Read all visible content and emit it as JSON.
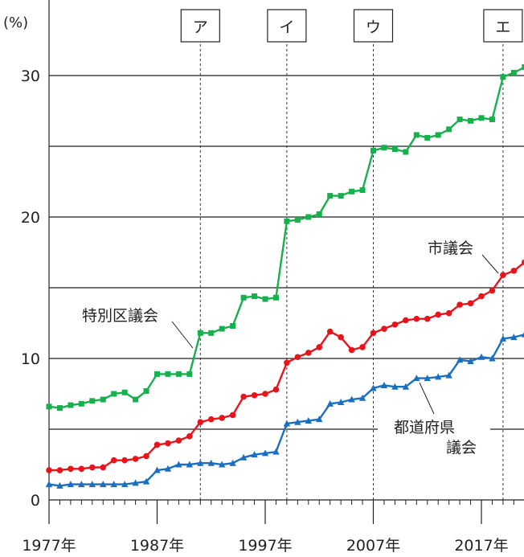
{
  "chart_data": {
    "type": "line",
    "ylabel": "(%)",
    "ylim": [
      0,
      30
    ],
    "ytick_labels": [
      "0",
      "10",
      "20",
      "30"
    ],
    "xtick_labels": [
      "1977年",
      "1987年",
      "1997年",
      "2007年",
      "2017年"
    ],
    "grid": "horizontal lines every 5%",
    "markers": [
      {
        "label": "ア",
        "year": 1991
      },
      {
        "label": "イ",
        "year": 1999
      },
      {
        "label": "ウ",
        "year": 2007
      },
      {
        "label": "エ",
        "year": 2019
      }
    ],
    "x": [
      1977,
      1978,
      1979,
      1980,
      1981,
      1982,
      1983,
      1984,
      1985,
      1986,
      1987,
      1988,
      1989,
      1990,
      1991,
      1992,
      1993,
      1994,
      1995,
      1996,
      1997,
      1998,
      1999,
      2000,
      2001,
      2002,
      2003,
      2004,
      2005,
      2006,
      2007,
      2008,
      2009,
      2010,
      2011,
      2012,
      2013,
      2014,
      2015,
      2016,
      2017,
      2018,
      2019,
      2020,
      2021
    ],
    "series": [
      {
        "name": "特別区議会",
        "color": "#16b04c",
        "marker": "square",
        "values": [
          6.6,
          6.5,
          6.7,
          6.8,
          7.0,
          7.1,
          7.5,
          7.6,
          7.1,
          7.7,
          8.9,
          8.9,
          8.9,
          8.9,
          11.8,
          11.8,
          12.1,
          12.3,
          14.3,
          14.4,
          14.2,
          14.3,
          19.7,
          19.8,
          20.0,
          20.2,
          21.5,
          21.5,
          21.8,
          21.9,
          24.7,
          24.9,
          24.8,
          24.6,
          25.8,
          25.6,
          25.8,
          26.2,
          26.9,
          26.8,
          27.0,
          26.9,
          29.9,
          30.2,
          30.6
        ]
      },
      {
        "name": "市議会",
        "color": "#e8141c",
        "marker": "circle",
        "values": [
          2.1,
          2.1,
          2.2,
          2.2,
          2.3,
          2.3,
          2.8,
          2.8,
          2.9,
          3.1,
          3.9,
          4.0,
          4.2,
          4.5,
          5.5,
          5.7,
          5.8,
          6.0,
          7.3,
          7.4,
          7.5,
          7.8,
          9.7,
          10.1,
          10.4,
          10.8,
          11.9,
          11.5,
          10.6,
          10.8,
          11.8,
          12.1,
          12.4,
          12.7,
          12.8,
          12.8,
          13.1,
          13.2,
          13.8,
          13.9,
          14.4,
          14.8,
          15.9,
          16.2,
          16.8
        ]
      },
      {
        "name": "都道府県議会",
        "color": "#1a6fc0",
        "marker": "triangle",
        "values": [
          1.1,
          1.0,
          1.1,
          1.1,
          1.1,
          1.1,
          1.1,
          1.1,
          1.2,
          1.3,
          2.1,
          2.2,
          2.5,
          2.5,
          2.6,
          2.6,
          2.5,
          2.6,
          3.0,
          3.2,
          3.3,
          3.4,
          5.4,
          5.5,
          5.6,
          5.7,
          6.8,
          6.9,
          7.1,
          7.2,
          7.9,
          8.1,
          8.0,
          8.0,
          8.6,
          8.6,
          8.7,
          8.8,
          9.9,
          9.8,
          10.1,
          10.0,
          11.4,
          11.5,
          11.7
        ]
      }
    ],
    "annotations": [
      {
        "text": "特別区議会",
        "series": "特別区議会"
      },
      {
        "text": "市議会",
        "series": "市議会"
      },
      {
        "text": "都道府県",
        "series": "都道府県議会"
      },
      {
        "text": "議会",
        "series": "都道府県議会"
      }
    ]
  }
}
